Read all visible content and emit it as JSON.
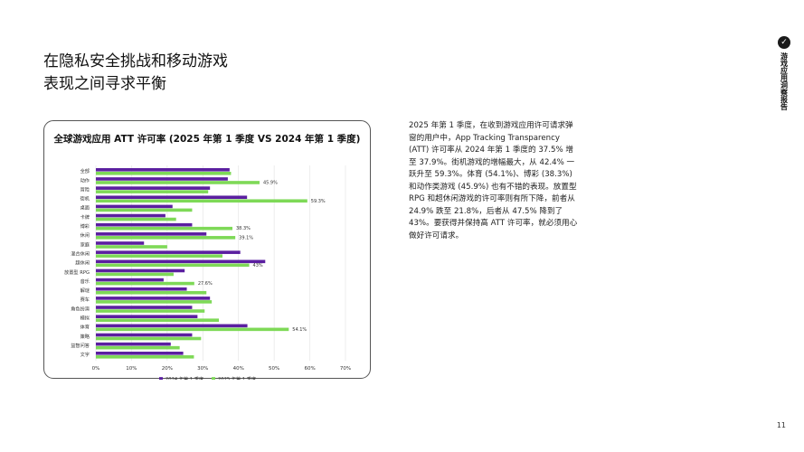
{
  "page": {
    "title_lines": [
      "在隐私安全挑战和移动游戏",
      "表现之间寻求平衡"
    ],
    "side_brand": "游戏应用洞察报告",
    "page_number": "11",
    "body_text": "2025 年第 1 季度，在收到游戏应用许可请求弹窗的用户中，App Tracking Transparency (ATT) 许可率从 2024 年第 1 季度的 37.5% 增至 37.9%。街机游戏的增幅最大，从 42.4% 一跃升至 59.3%。体育 (54.1%)、博彩 (38.3%) 和动作类游戏 (45.9%) 也有不错的表现。放置型 RPG 和超休闲游戏的许可率则有所下降，前者从 24.9% 跌至 21.8%，后者从 47.5% 降到了 43%。要获得并保持高 ATT 许可率，就必须用心做好许可请求。"
  },
  "chart_data": {
    "type": "bar",
    "orientation": "horizontal",
    "title": "全球游戏应用 ATT 许可率 (2025 年第 1 季度 VS 2024 年第 1 季度)",
    "categories": [
      "全部",
      "动作",
      "冒险",
      "街机",
      "桌面",
      "卡牌",
      "博彩",
      "休闲",
      "家庭",
      "混合休闲",
      "超休闲",
      "放置型 RPG",
      "音乐",
      "解谜",
      "赛车",
      "角色扮演",
      "模拟",
      "体育",
      "策略",
      "益智问答",
      "文字"
    ],
    "series": [
      {
        "name": "2024 年第 1 季度",
        "color": "#5b1fa0",
        "values": [
          37.5,
          37.0,
          32.0,
          42.4,
          21.5,
          19.5,
          27.0,
          31.0,
          13.5,
          40.5,
          47.5,
          24.9,
          19.0,
          25.5,
          32.0,
          27.0,
          28.5,
          42.5,
          27.0,
          21.0,
          24.5
        ]
      },
      {
        "name": "2025 年第 1 季度",
        "color": "#7ed957",
        "values": [
          37.9,
          45.9,
          31.5,
          59.3,
          27.0,
          22.5,
          38.3,
          39.1,
          20.0,
          35.5,
          43.0,
          21.8,
          27.6,
          31.0,
          32.5,
          30.5,
          34.5,
          54.1,
          29.5,
          23.5,
          27.5
        ]
      }
    ],
    "data_labels": [
      {
        "category_index": 1,
        "series_index": 1,
        "text": "45.9%"
      },
      {
        "category_index": 3,
        "series_index": 1,
        "text": "59.3%"
      },
      {
        "category_index": 6,
        "series_index": 1,
        "text": "38.3%"
      },
      {
        "category_index": 7,
        "series_index": 1,
        "text": "39.1%"
      },
      {
        "category_index": 10,
        "series_index": 1,
        "text": "43%"
      },
      {
        "category_index": 12,
        "series_index": 1,
        "text": "27.6%"
      },
      {
        "category_index": 17,
        "series_index": 1,
        "text": "54.1%"
      }
    ],
    "xlim": [
      0,
      70
    ],
    "x_ticks": [
      "0%",
      "10%",
      "20%",
      "30%",
      "40%",
      "50%",
      "60%",
      "70%"
    ],
    "grid": true,
    "legend_position": "bottom"
  }
}
